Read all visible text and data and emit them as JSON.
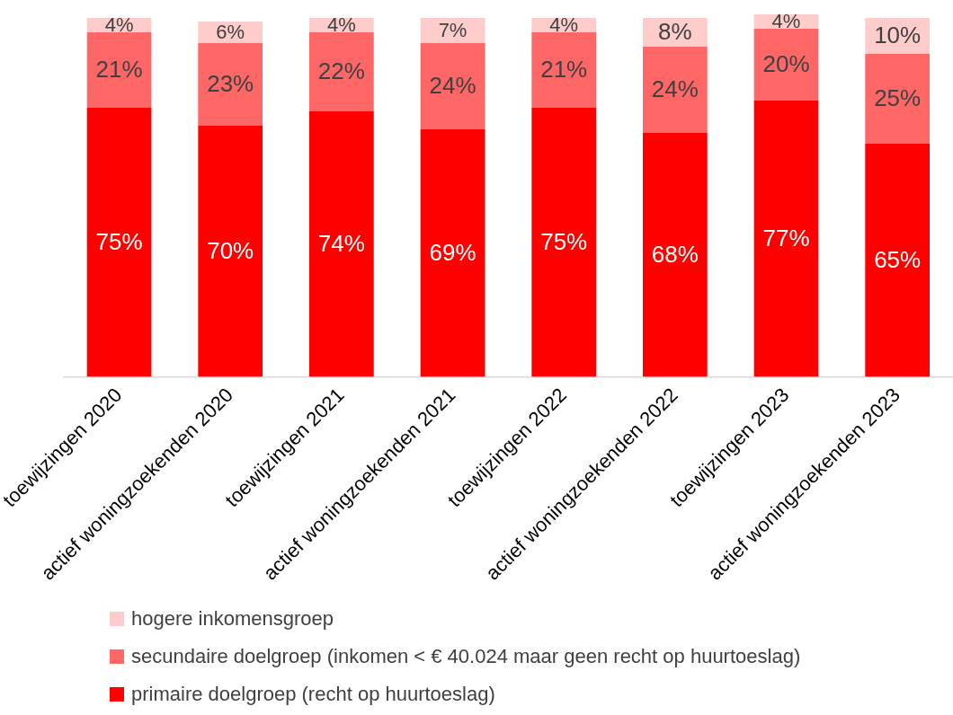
{
  "chart_data": {
    "type": "bar",
    "stacked": true,
    "tick_labels": "x",
    "grid": false,
    "legend": "bottom",
    "categories": [
      "toewijzingen 2020",
      "actief woningzoekenden 2020",
      "toewijzingen 2021",
      "actief woningzoekenden 2021",
      "toewijzingen 2022",
      "actief woningzoekenden 2022",
      "toewijzingen 2023",
      "actief woningzoekenden 2023"
    ],
    "series": [
      {
        "name": "primaire doelgroep (recht op huurtoeslag)",
        "color": "#ff0000",
        "values": [
          75,
          70,
          74,
          69,
          75,
          68,
          77,
          65
        ],
        "value_labels": [
          "75%",
          "70%",
          "74%",
          "69%",
          "75%",
          "68%",
          "77%",
          "65%"
        ]
      },
      {
        "name": "secundaire doelgroep (inkomen < € 40.024 maar geen recht op huurtoeslag)",
        "color": "#ff6666",
        "values": [
          21,
          23,
          22,
          24,
          21,
          24,
          20,
          25
        ],
        "value_labels": [
          "21%",
          "23%",
          "22%",
          "24%",
          "21%",
          "24%",
          "20%",
          "25%"
        ]
      },
      {
        "name": "hogere inkomensgroep",
        "color": "#ffcccc",
        "values": [
          4,
          6,
          4,
          7,
          4,
          8,
          4,
          10
        ],
        "value_labels": [
          "4%",
          "6%",
          "4%",
          "7%",
          "4%",
          "8%",
          "4%",
          "10%"
        ]
      }
    ]
  }
}
